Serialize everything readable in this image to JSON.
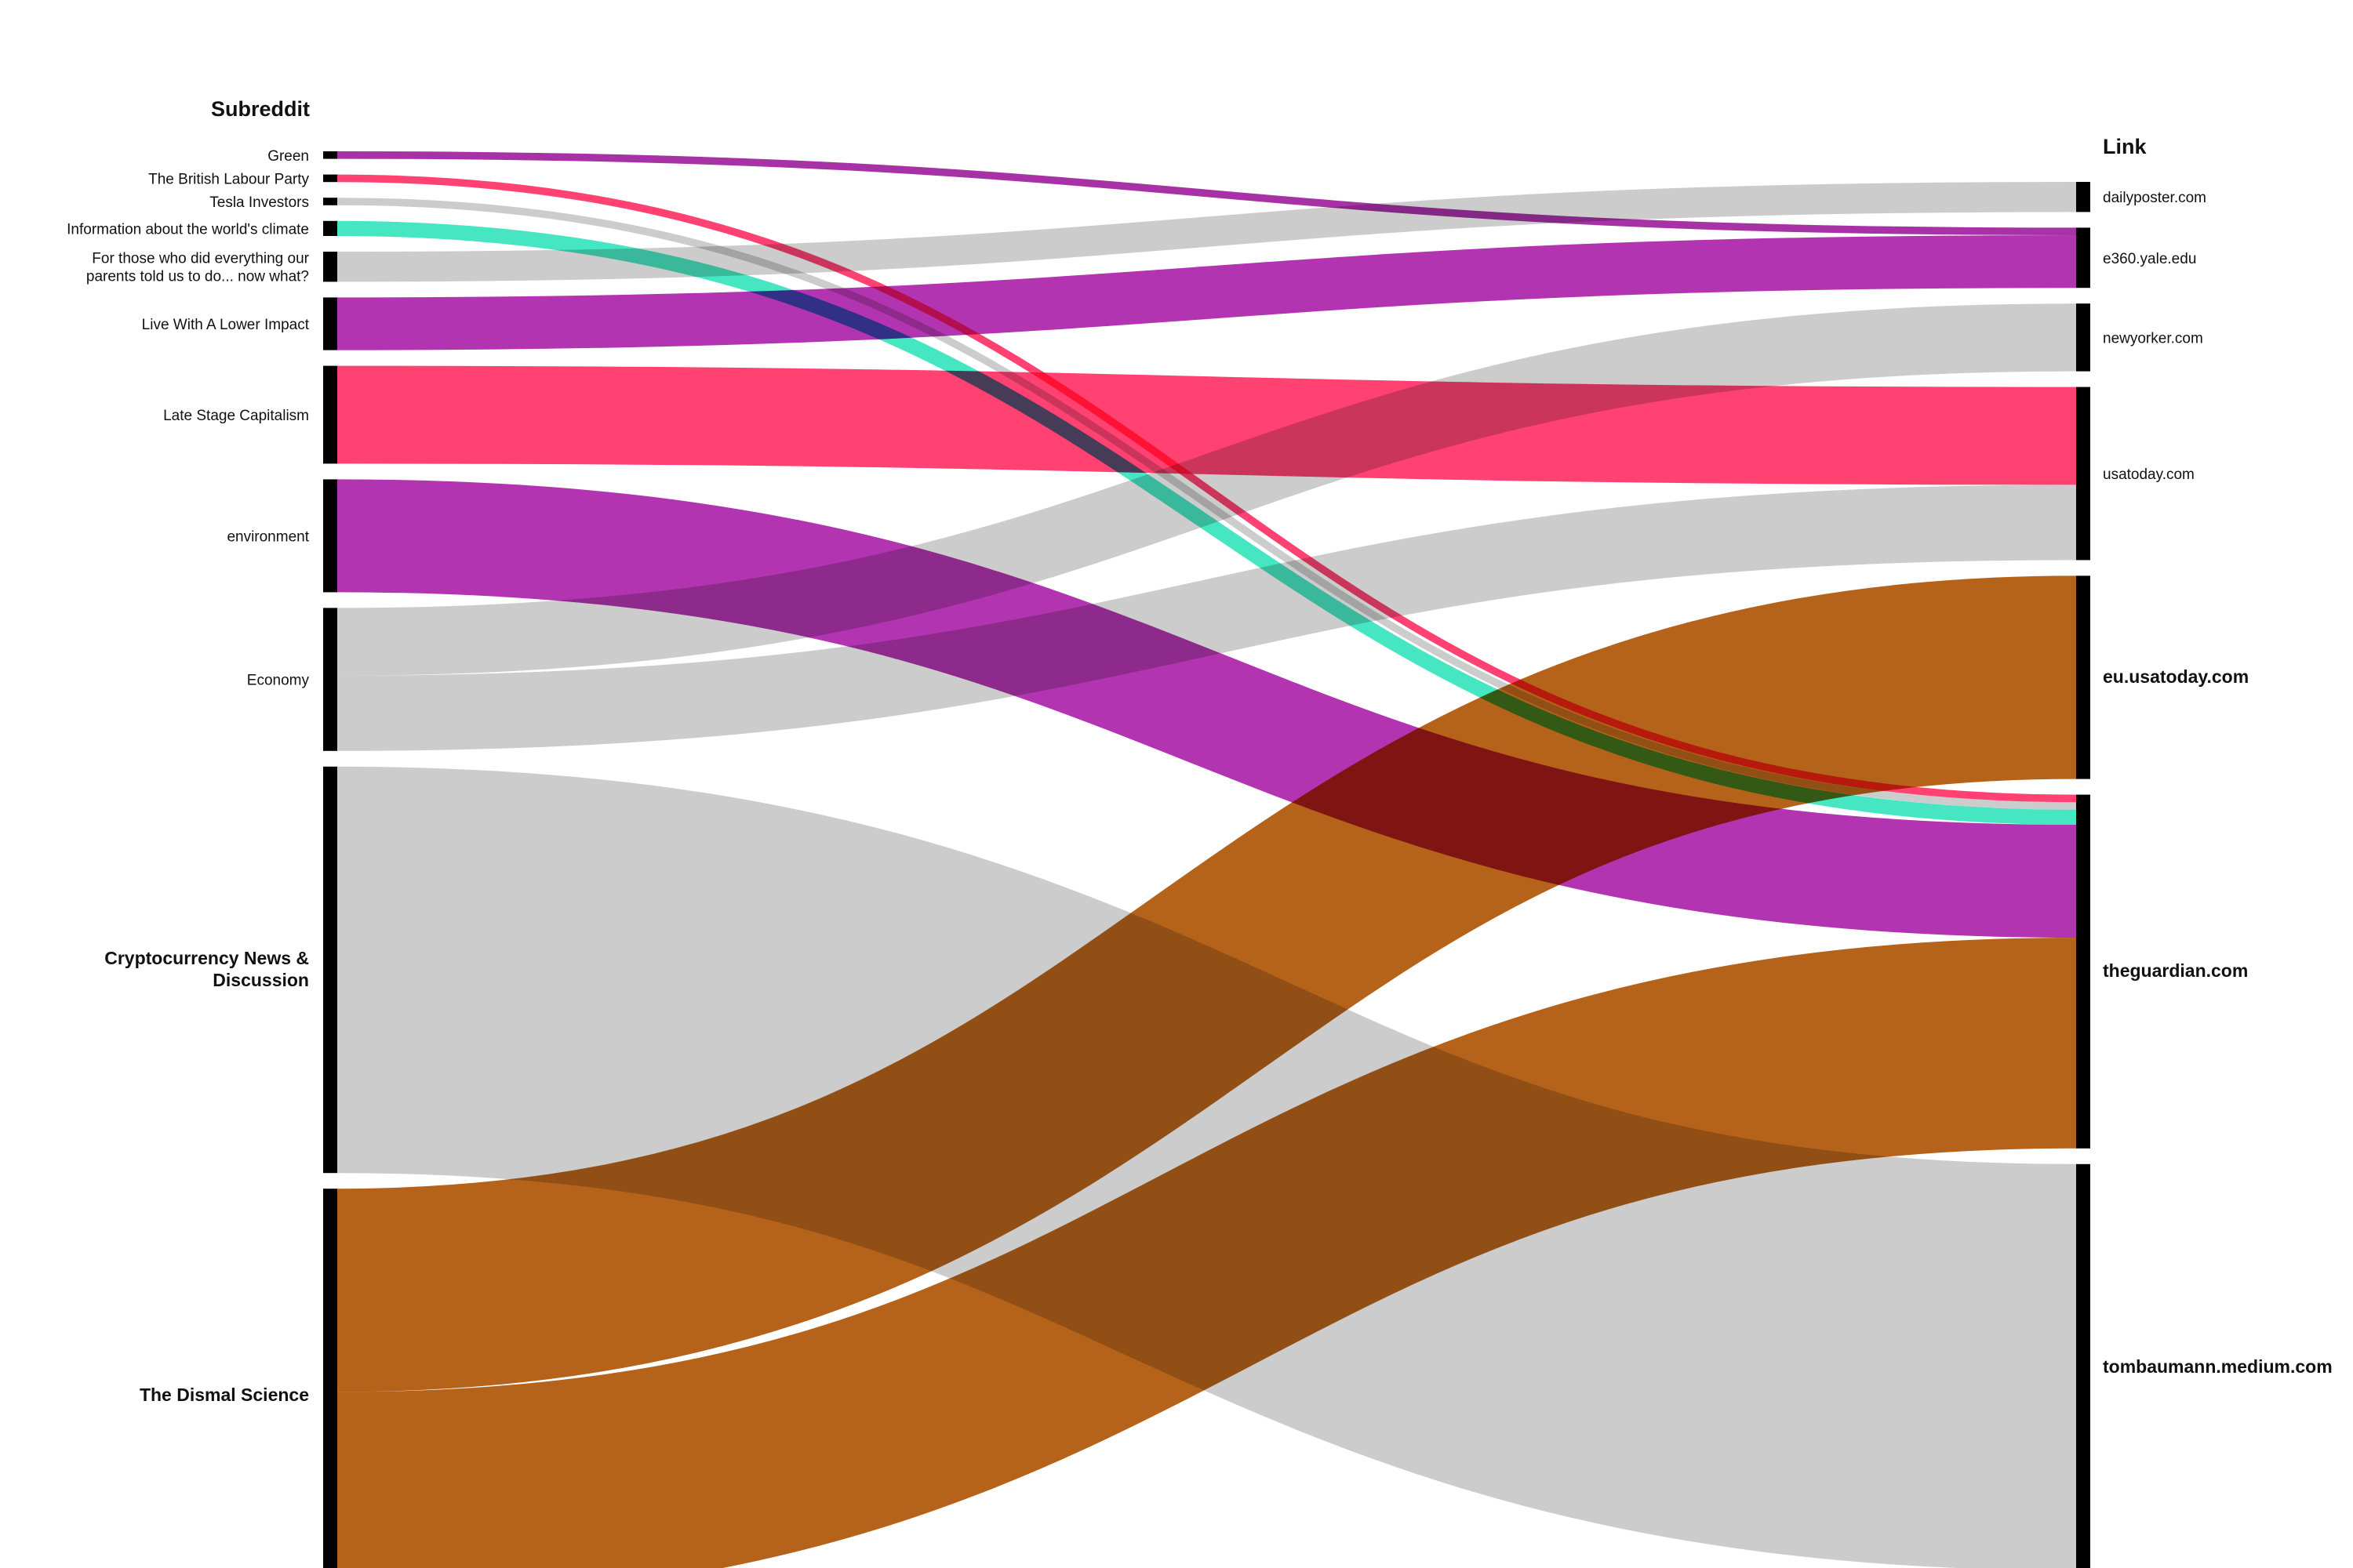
{
  "chart_data": {
    "type": "sankey",
    "title": "",
    "columns": {
      "left_title": "Subreddit",
      "right_title": "Link"
    },
    "sources": [
      {
        "id": "green",
        "label": "Green",
        "value": 1
      },
      {
        "id": "labour",
        "label": "The British Labour Party",
        "value": 1
      },
      {
        "id": "tesla",
        "label": "Tesla Investors",
        "value": 1
      },
      {
        "id": "climate",
        "label": "Information about the world's climate",
        "value": 2
      },
      {
        "id": "parents",
        "label": "For those who did everything our parents told us to do... now what?",
        "label_lines": [
          "For those who did everything our",
          "parents told us to do... now what?"
        ],
        "value": 4
      },
      {
        "id": "lowimpact",
        "label": "Live With A Lower Impact",
        "value": 7
      },
      {
        "id": "lsc",
        "label": "Late Stage Capitalism",
        "value": 13
      },
      {
        "id": "environment",
        "label": "environment",
        "value": 15
      },
      {
        "id": "economy",
        "label": "Economy",
        "value": 19
      },
      {
        "id": "crypto",
        "label": "Cryptocurrency News & Discussion",
        "label_lines": [
          "Cryptocurrency News &",
          "Discussion"
        ],
        "value": 54,
        "bold": true
      },
      {
        "id": "dismal",
        "label": "The Dismal Science",
        "value": 55,
        "bold": true
      }
    ],
    "targets": [
      {
        "id": "dailyposter",
        "label": "dailyposter.com",
        "value": 4
      },
      {
        "id": "e360",
        "label": "e360.yale.edu",
        "value": 8
      },
      {
        "id": "newyorker",
        "label": "newyorker.com",
        "value": 9
      },
      {
        "id": "usatoday",
        "label": "usatoday.com",
        "value": 23
      },
      {
        "id": "euusatoday",
        "label": "eu.usatoday.com",
        "value": 27,
        "bold": true
      },
      {
        "id": "guardian",
        "label": "theguardian.com",
        "value": 47,
        "bold": true
      },
      {
        "id": "medium",
        "label": "tombaumann.medium.com",
        "value": 54,
        "bold": true
      }
    ],
    "links": [
      {
        "source": "green",
        "target": "e360",
        "value": 1,
        "color": "#a632a6"
      },
      {
        "source": "lowimpact",
        "target": "e360",
        "value": 7,
        "color": "#b334b0"
      },
      {
        "source": "parents",
        "target": "dailyposter",
        "value": 4,
        "color": "#cccccc"
      },
      {
        "source": "economy",
        "target": "newyorker",
        "value": 9,
        "color": "#cccccc"
      },
      {
        "source": "lsc",
        "target": "usatoday",
        "value": 13,
        "color": "#ff4272"
      },
      {
        "source": "economy",
        "target": "usatoday",
        "value": 10,
        "color": "#cccccc"
      },
      {
        "source": "dismal",
        "target": "euusatoday",
        "value": 27,
        "color": "#b5621a"
      },
      {
        "source": "labour",
        "target": "guardian",
        "value": 1,
        "color": "#ff4272"
      },
      {
        "source": "tesla",
        "target": "guardian",
        "value": 1,
        "color": "#cccccc"
      },
      {
        "source": "climate",
        "target": "guardian",
        "value": 2,
        "color": "#47e6c2"
      },
      {
        "source": "environment",
        "target": "guardian",
        "value": 15,
        "color": "#b334b0"
      },
      {
        "source": "dismal",
        "target": "guardian",
        "value": 28,
        "color": "#b5621a"
      },
      {
        "source": "crypto",
        "target": "medium",
        "value": 54,
        "color": "#cccccc"
      }
    ],
    "node_color": "#000000"
  }
}
